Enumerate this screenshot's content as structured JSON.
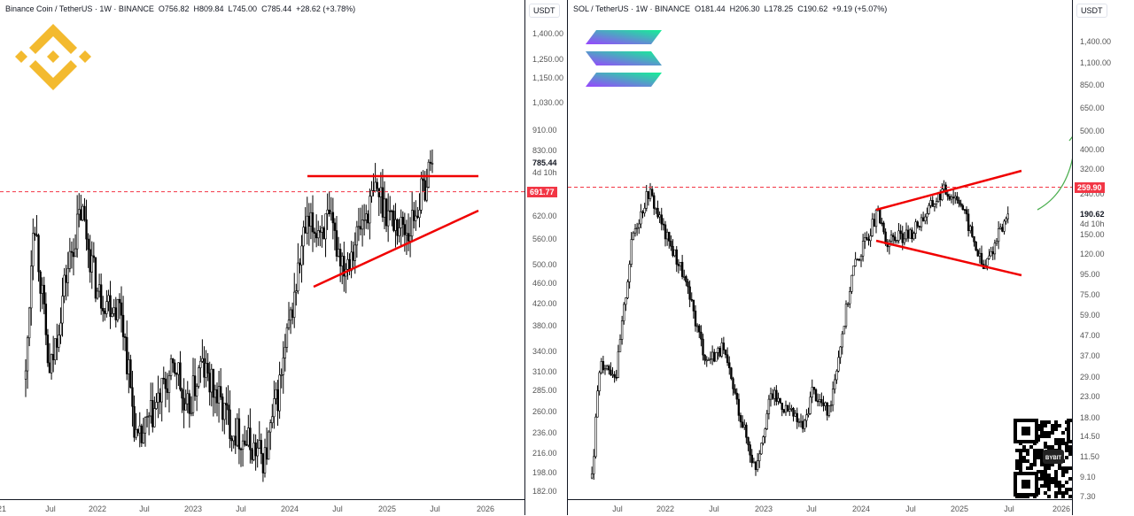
{
  "panes": [
    {
      "legend": {
        "symbol": "Binance Coin / TetherUS · 1W · BINANCE",
        "open": "O756.82",
        "high": "H809.84",
        "low": "L745.00",
        "close": "C785.44",
        "change": "+28.62 (+3.78%)"
      },
      "unit": "USDT",
      "price_ticks": [
        "1,400.00",
        "1,250.00",
        "1,150.00",
        "1,030.00",
        "910.00",
        "830.00",
        "620.00",
        "560.00",
        "500.00",
        "460.00",
        "420.00",
        "380.00",
        "340.00",
        "310.00",
        "285.00",
        "260.00",
        "236.00",
        "216.00",
        "198.00",
        "182.00"
      ],
      "current_price": "785.44",
      "countdown": "4d 10h",
      "marked_level": "691.77",
      "time_ticks": [
        "21",
        "Jul",
        "2022",
        "Jul",
        "2023",
        "Jul",
        "2024",
        "Jul",
        "2025",
        "Jul",
        "2026"
      ]
    },
    {
      "legend": {
        "symbol": "SOL / TetherUS · 1W · BINANCE",
        "open": "O181.44",
        "high": "H206.30",
        "low": "L178.25",
        "close": "C190.62",
        "change": "+9.19 (+5.07%)"
      },
      "unit": "USDT",
      "price_ticks": [
        "1,400.00",
        "1,100.00",
        "850.00",
        "650.00",
        "500.00",
        "400.00",
        "320.00",
        "240.00",
        "150.00",
        "120.00",
        "95.00",
        "75.00",
        "59.00",
        "47.00",
        "37.00",
        "29.00",
        "23.00",
        "18.00",
        "14.50",
        "11.50",
        "9.10",
        "7.30"
      ],
      "current_price": "190.62",
      "countdown": "4d 10h",
      "marked_level": "259.90",
      "time_ticks": [
        "Jul",
        "2022",
        "Jul",
        "2023",
        "Jul",
        "2024",
        "Jul",
        "2025",
        "Jul",
        "2026"
      ]
    }
  ],
  "brand_logo": "BYBIT",
  "colors": {
    "trendline": "#f00000",
    "arrow": "#4caf50",
    "level": "#f23645"
  },
  "chart_data": [
    {
      "type": "candlestick",
      "title": "Binance Coin / TetherUS 1W",
      "ylabel": "USDT",
      "yscale": "log",
      "ylim": [
        175,
        1450
      ],
      "anchors": [
        [
          "2021-04",
          300
        ],
        [
          "2021-05",
          650
        ],
        [
          "2021-07",
          300
        ],
        [
          "2021-09",
          470
        ],
        [
          "2021-11",
          640
        ],
        [
          "2022-01",
          440
        ],
        [
          "2022-04",
          410
        ],
        [
          "2022-06",
          220
        ],
        [
          "2022-09",
          280
        ],
        [
          "2022-11",
          320
        ],
        [
          "2022-12",
          250
        ],
        [
          "2023-02",
          320
        ],
        [
          "2023-06",
          240
        ],
        [
          "2023-10",
          210
        ],
        [
          "2023-12",
          300
        ],
        [
          "2024-03",
          580
        ],
        [
          "2024-06",
          600
        ],
        [
          "2024-08",
          500
        ],
        [
          "2024-12",
          700
        ],
        [
          "2025-02",
          610
        ],
        [
          "2025-04",
          580
        ],
        [
          "2025-07",
          785.44
        ]
      ]
    },
    {
      "type": "candlestick",
      "title": "SOL / TetherUS 1W",
      "ylabel": "USDT",
      "yscale": "log",
      "ylim": [
        7,
        1900
      ],
      "anchors": [
        [
          "2021-04",
          9
        ],
        [
          "2021-05",
          35
        ],
        [
          "2021-07",
          30
        ],
        [
          "2021-09",
          150
        ],
        [
          "2021-11",
          250
        ],
        [
          "2022-01",
          150
        ],
        [
          "2022-03",
          100
        ],
        [
          "2022-06",
          35
        ],
        [
          "2022-08",
          40
        ],
        [
          "2022-11",
          14
        ],
        [
          "2022-12",
          10
        ],
        [
          "2023-02",
          24
        ],
        [
          "2023-06",
          16
        ],
        [
          "2023-07",
          25
        ],
        [
          "2023-09",
          19
        ],
        [
          "2023-12",
          100
        ],
        [
          "2024-03",
          190
        ],
        [
          "2024-04",
          140
        ],
        [
          "2024-07",
          150
        ],
        [
          "2024-11",
          250
        ],
        [
          "2025-01",
          230
        ],
        [
          "2025-04",
          100
        ],
        [
          "2025-07",
          190.62
        ]
      ]
    }
  ]
}
